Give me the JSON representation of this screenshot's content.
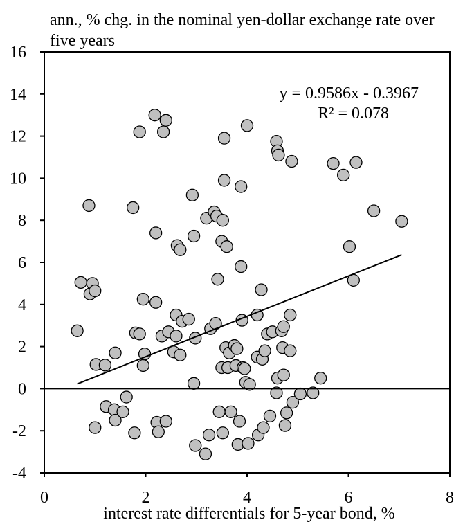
{
  "chart_data": {
    "type": "scatter",
    "title": "ann., % chg. in the nominal yen-dollar exchange rate over five years",
    "xlabel": "interest rate differentials for 5-year bond, %",
    "ylabel": "",
    "xlim": [
      0,
      8
    ],
    "ylim": [
      -4,
      16
    ],
    "x_ticks": [
      "0",
      "2",
      "4",
      "6",
      "8"
    ],
    "y_ticks": [
      "-4",
      "-2",
      "0",
      "2",
      "4",
      "6",
      "8",
      "10",
      "12",
      "14",
      "16"
    ],
    "grid": false,
    "marker_color": "#c0c0c0",
    "trendline": {
      "equation": "y = 0.9586x - 0.3967",
      "r_squared": "R² = 0.078",
      "slope": 0.9586,
      "intercept": -0.3967,
      "x_range": [
        0.65,
        7.05
      ]
    },
    "points": [
      [
        0.65,
        2.75
      ],
      [
        0.72,
        5.05
      ],
      [
        0.88,
        8.7
      ],
      [
        0.9,
        4.5
      ],
      [
        0.95,
        5.0
      ],
      [
        1.0,
        4.65
      ],
      [
        1.02,
        1.15
      ],
      [
        1.0,
        -1.85
      ],
      [
        1.2,
        1.12
      ],
      [
        1.22,
        -0.85
      ],
      [
        1.38,
        -1.0
      ],
      [
        1.4,
        -1.5
      ],
      [
        1.4,
        1.7
      ],
      [
        1.55,
        -1.1
      ],
      [
        1.62,
        -0.4
      ],
      [
        1.75,
        8.6
      ],
      [
        1.78,
        -2.1
      ],
      [
        1.8,
        2.65
      ],
      [
        1.88,
        2.6
      ],
      [
        1.88,
        12.2
      ],
      [
        1.95,
        1.1
      ],
      [
        1.95,
        4.25
      ],
      [
        1.98,
        1.65
      ],
      [
        2.18,
        13.0
      ],
      [
        2.2,
        7.4
      ],
      [
        2.2,
        4.1
      ],
      [
        2.22,
        -1.6
      ],
      [
        2.25,
        -2.05
      ],
      [
        2.32,
        2.5
      ],
      [
        2.35,
        12.2
      ],
      [
        2.4,
        12.75
      ],
      [
        2.4,
        -1.55
      ],
      [
        2.45,
        2.7
      ],
      [
        2.55,
        1.75
      ],
      [
        2.6,
        3.5
      ],
      [
        2.6,
        2.5
      ],
      [
        2.62,
        6.8
      ],
      [
        2.68,
        6.6
      ],
      [
        2.68,
        1.6
      ],
      [
        2.72,
        3.2
      ],
      [
        2.85,
        3.3
      ],
      [
        2.92,
        9.2
      ],
      [
        2.95,
        7.25
      ],
      [
        2.95,
        0.25
      ],
      [
        2.98,
        2.4
      ],
      [
        2.98,
        -2.7
      ],
      [
        3.18,
        -3.1
      ],
      [
        3.2,
        8.1
      ],
      [
        3.25,
        -2.2
      ],
      [
        3.28,
        2.85
      ],
      [
        3.35,
        8.4
      ],
      [
        3.38,
        3.1
      ],
      [
        3.4,
        8.2
      ],
      [
        3.42,
        5.2
      ],
      [
        3.45,
        -1.1
      ],
      [
        3.5,
        7.0
      ],
      [
        3.52,
        8.0
      ],
      [
        3.5,
        1.0
      ],
      [
        3.52,
        -2.1
      ],
      [
        3.55,
        11.9
      ],
      [
        3.55,
        9.9
      ],
      [
        3.58,
        1.95
      ],
      [
        3.6,
        6.75
      ],
      [
        3.62,
        1.0
      ],
      [
        3.65,
        1.7
      ],
      [
        3.68,
        -1.1
      ],
      [
        3.75,
        2.05
      ],
      [
        3.78,
        1.1
      ],
      [
        3.8,
        1.9
      ],
      [
        3.82,
        -2.65
      ],
      [
        3.85,
        -1.55
      ],
      [
        3.88,
        9.6
      ],
      [
        3.88,
        5.8
      ],
      [
        3.9,
        3.25
      ],
      [
        3.92,
        1.0
      ],
      [
        3.95,
        0.95
      ],
      [
        3.97,
        0.3
      ],
      [
        4.0,
        12.5
      ],
      [
        4.02,
        -2.6
      ],
      [
        4.05,
        0.2
      ],
      [
        4.2,
        1.5
      ],
      [
        4.2,
        3.5
      ],
      [
        4.22,
        -2.2
      ],
      [
        4.28,
        4.7
      ],
      [
        4.3,
        1.4
      ],
      [
        4.32,
        -1.85
      ],
      [
        4.35,
        1.8
      ],
      [
        4.4,
        2.6
      ],
      [
        4.45,
        -1.3
      ],
      [
        4.5,
        2.7
      ],
      [
        4.58,
        11.75
      ],
      [
        4.6,
        11.3
      ],
      [
        4.62,
        11.1
      ],
      [
        4.6,
        0.5
      ],
      [
        4.58,
        -0.2
      ],
      [
        4.68,
        2.75
      ],
      [
        4.7,
        1.95
      ],
      [
        4.72,
        2.95
      ],
      [
        4.72,
        0.65
      ],
      [
        4.75,
        -1.75
      ],
      [
        4.78,
        -1.15
      ],
      [
        4.85,
        1.8
      ],
      [
        4.85,
        3.5
      ],
      [
        4.88,
        10.8
      ],
      [
        4.9,
        -0.65
      ],
      [
        5.05,
        -0.25
      ],
      [
        5.3,
        -0.2
      ],
      [
        5.45,
        0.5
      ],
      [
        5.7,
        10.7
      ],
      [
        5.9,
        10.15
      ],
      [
        6.02,
        6.75
      ],
      [
        6.1,
        5.15
      ],
      [
        6.15,
        10.75
      ],
      [
        6.5,
        8.45
      ],
      [
        7.05,
        7.95
      ]
    ]
  }
}
